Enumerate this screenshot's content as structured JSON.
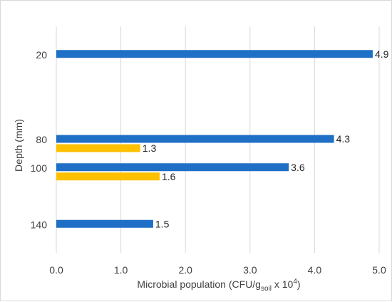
{
  "chart_data": {
    "type": "bar",
    "orientation": "horizontal",
    "title": "",
    "xlabel": {
      "main": "Microbial population (CFU/g",
      "subscript": "soil",
      "mid": " x 10",
      "superscript": "4",
      "end": ")"
    },
    "ylabel": "Depth (mm)",
    "xlim": [
      0,
      5.0
    ],
    "x_ticks": [
      "0.0",
      "1.0",
      "2.0",
      "3.0",
      "4.0",
      "5.0"
    ],
    "categories": [
      "20",
      "80",
      "100",
      "140"
    ],
    "grid": "vertical",
    "legend": "none",
    "series": [
      {
        "color": "#1f6fc6",
        "values": [
          4.9,
          4.3,
          3.6,
          1.5
        ],
        "labels": [
          "4.9",
          "4.3",
          "3.6",
          "1.5"
        ]
      },
      {
        "color": "#ffc000",
        "values": [
          null,
          1.3,
          1.6,
          null
        ],
        "labels": [
          "",
          "1.3",
          "1.6",
          ""
        ]
      }
    ]
  }
}
